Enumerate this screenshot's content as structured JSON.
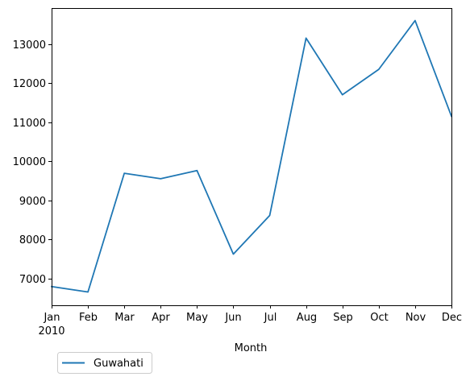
{
  "chart_data": {
    "type": "line",
    "x": [
      "Jan",
      "Feb",
      "Mar",
      "Apr",
      "May",
      "Jun",
      "Jul",
      "Aug",
      "Sep",
      "Oct",
      "Nov",
      "Dec"
    ],
    "year_label": "2010",
    "series": [
      {
        "name": "Guwahati",
        "color": "#1f77b4",
        "values": [
          6790,
          6650,
          9690,
          9550,
          9760,
          7620,
          8610,
          13150,
          11700,
          12350,
          13600,
          11150
        ]
      }
    ],
    "xlabel": "Month",
    "ylabel": "",
    "title": "",
    "ylim": [
      6310,
      13920
    ],
    "yticks": [
      7000,
      8000,
      9000,
      10000,
      11000,
      12000,
      13000
    ],
    "grid": false,
    "legend_position": "below-left"
  }
}
